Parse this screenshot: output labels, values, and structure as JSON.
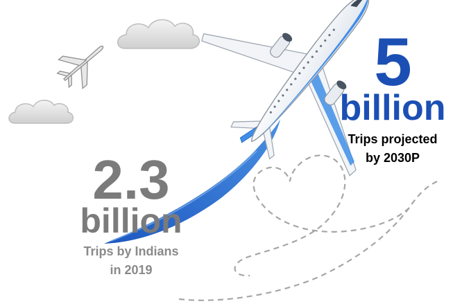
{
  "stats": {
    "projected": {
      "value": "5",
      "unit": "billion",
      "line1": "Trips projected",
      "line2": "by 2030P"
    },
    "current": {
      "value": "2.3",
      "unit": "billion",
      "line1": "Trips by Indians",
      "line2": "in 2019"
    }
  },
  "colors": {
    "projected_blue": "#1b4fb4",
    "current_gray": "#7b7b7b",
    "swoosh_blue": "#2f6fd0",
    "plane_blue": "#3f8ee8",
    "dashed_line": "#a6a6a6",
    "cloud": "#d9d9d9"
  },
  "icons": [
    "airplane-icon",
    "small-airplane-icon",
    "cloud-icon"
  ]
}
